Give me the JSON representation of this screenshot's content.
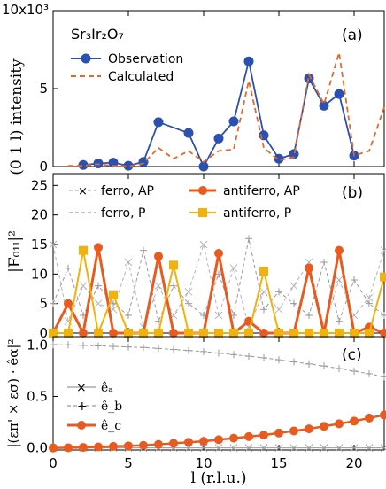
{
  "chart_data": [
    {
      "type": "line",
      "panel_label": "(a)",
      "title": "Sr₃Ir₂O₇",
      "ylabel": "(0 1 l) intensity",
      "y_multiplier": "10x10³",
      "xlim": [
        0,
        22
      ],
      "ylim": [
        0,
        10
      ],
      "yticks": [
        "0",
        "5"
      ],
      "legend_position": "top-left",
      "series": [
        {
          "name": "Observation",
          "color": "#2a50b0",
          "x": [
            2,
            3,
            4,
            5,
            6,
            7,
            9,
            10,
            11,
            12,
            13,
            14,
            15,
            16,
            17,
            18,
            19,
            20
          ],
          "values": [
            0.1,
            0.2,
            0.25,
            0.05,
            0.3,
            2.85,
            2.15,
            0.0,
            1.8,
            2.9,
            6.75,
            2.0,
            0.5,
            0.8,
            5.65,
            3.9,
            4.65,
            0.7
          ]
        },
        {
          "name": "Calculated",
          "color": "#e06a2c",
          "x": [
            1,
            2,
            3,
            4,
            5,
            6,
            7,
            8,
            9,
            10,
            11,
            12,
            13,
            14,
            15,
            16,
            17,
            18,
            19,
            20,
            21,
            22
          ],
          "values": [
            0.05,
            0.05,
            0.15,
            0.05,
            0.0,
            0.2,
            1.2,
            0.5,
            1.0,
            0.3,
            1.0,
            1.1,
            5.5,
            1.2,
            0.4,
            0.6,
            5.9,
            4.0,
            7.3,
            0.7,
            1.0,
            3.8
          ]
        }
      ]
    },
    {
      "type": "line",
      "panel_label": "(b)",
      "ylabel": "|F₀₁ₗ|²",
      "xlim": [
        0,
        22
      ],
      "ylim": [
        0,
        27
      ],
      "yticks": [
        "0",
        "5",
        "10",
        "15",
        "20",
        "25"
      ],
      "legend_position": "top",
      "series": [
        {
          "name": "ferro, AP",
          "color": "#b5b5b5",
          "x": [
            0,
            1,
            2,
            3,
            4,
            5,
            6,
            7,
            8,
            9,
            10,
            11,
            12,
            13,
            14,
            15,
            16,
            17,
            18,
            19,
            20,
            21,
            22
          ],
          "values": [
            15,
            2,
            8,
            5,
            4,
            12,
            1,
            8,
            3,
            7,
            15,
            3,
            11,
            1,
            7,
            4,
            8,
            12,
            1,
            9,
            3,
            6,
            14
          ]
        },
        {
          "name": "ferro,  P",
          "color": "#9a9a9a",
          "x": [
            0,
            1,
            2,
            3,
            4,
            5,
            6,
            7,
            8,
            9,
            10,
            11,
            12,
            13,
            14,
            15,
            16,
            17,
            18,
            19,
            20,
            21,
            22
          ],
          "values": [
            5,
            11,
            3,
            8,
            5,
            3,
            14,
            2,
            8,
            5,
            3,
            10,
            3,
            16,
            4,
            7,
            5,
            3,
            12,
            2,
            9,
            5,
            3
          ]
        },
        {
          "name": "antiferro, AP",
          "color": "#e85b20",
          "x": [
            0,
            1,
            2,
            3,
            4,
            5,
            6,
            7,
            8,
            9,
            10,
            11,
            12,
            13,
            14,
            15,
            16,
            17,
            18,
            19,
            20,
            21,
            22
          ],
          "values": [
            0,
            5,
            0,
            14.5,
            0,
            0,
            0,
            13,
            0,
            0,
            0,
            13.5,
            0,
            2,
            0,
            0,
            0,
            11,
            0,
            14,
            0,
            1,
            0
          ]
        },
        {
          "name": "antiferro,  P",
          "color": "#f2b20d",
          "x": [
            0,
            1,
            2,
            3,
            4,
            5,
            6,
            7,
            8,
            9,
            10,
            11,
            12,
            13,
            14,
            15,
            16,
            17,
            18,
            19,
            20,
            21,
            22
          ],
          "values": [
            0,
            0,
            14,
            0,
            6.5,
            0,
            0,
            0,
            11.5,
            0,
            0,
            0,
            0,
            0,
            10.5,
            0,
            0,
            0,
            0,
            0,
            0,
            0,
            9.5
          ]
        }
      ]
    },
    {
      "type": "line",
      "panel_label": "(c)",
      "ylabel": "|(επ' × εσ) · êα|²",
      "xlabel": "l (r.l.u.)",
      "xlim": [
        0,
        22
      ],
      "ylim": [
        -0.02,
        1.08
      ],
      "xticks": [
        "0",
        "5",
        "10",
        "15",
        "20"
      ],
      "yticks": [
        "0.0",
        "0.5",
        "1.0"
      ],
      "legend_position": "bottom-left",
      "series": [
        {
          "name": "êₐ",
          "color": "#9a9a9a",
          "x": [
            0,
            1,
            2,
            3,
            4,
            5,
            6,
            7,
            8,
            9,
            10,
            11,
            12,
            13,
            14,
            15,
            16,
            17,
            18,
            19,
            20,
            21,
            22
          ],
          "values": [
            0,
            0,
            0,
            0,
            0,
            0,
            0,
            0,
            0,
            0,
            0,
            0,
            0,
            0,
            0,
            0,
            0,
            0,
            0,
            0,
            0,
            0,
            0
          ]
        },
        {
          "name": "ê_b",
          "color": "#9a9a9a",
          "x": [
            0,
            1,
            2,
            3,
            4,
            5,
            6,
            7,
            8,
            9,
            10,
            11,
            12,
            13,
            14,
            15,
            16,
            17,
            18,
            19,
            20,
            21,
            22
          ],
          "values": [
            1.0,
            1.0,
            0.995,
            0.99,
            0.985,
            0.98,
            0.975,
            0.965,
            0.955,
            0.945,
            0.935,
            0.92,
            0.905,
            0.89,
            0.875,
            0.855,
            0.835,
            0.815,
            0.795,
            0.77,
            0.745,
            0.72,
            0.69
          ]
        },
        {
          "name": "ê_c",
          "color": "#e85b20",
          "x": [
            0,
            1,
            2,
            3,
            4,
            5,
            6,
            7,
            8,
            9,
            10,
            11,
            12,
            13,
            14,
            15,
            16,
            17,
            18,
            19,
            20,
            21,
            22
          ],
          "values": [
            0,
            0.002,
            0.005,
            0.01,
            0.015,
            0.02,
            0.025,
            0.035,
            0.045,
            0.055,
            0.065,
            0.08,
            0.095,
            0.11,
            0.125,
            0.145,
            0.165,
            0.185,
            0.21,
            0.235,
            0.26,
            0.29,
            0.32
          ]
        }
      ]
    }
  ]
}
